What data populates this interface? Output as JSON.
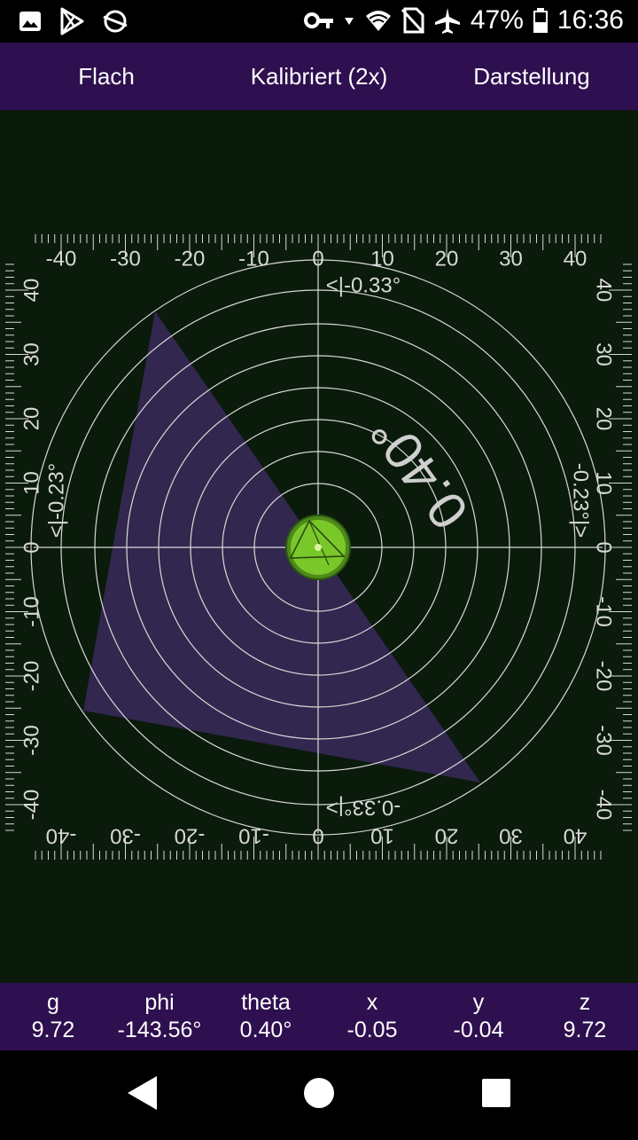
{
  "status": {
    "battery": "47%",
    "time": "16:36",
    "icons_left": [
      "gallery-icon",
      "play-store-icon",
      "sync-icon"
    ],
    "icons_right": [
      "vpn-key-icon",
      "wifi-icon",
      "no-sim-icon",
      "airplane-icon",
      "battery-icon"
    ]
  },
  "toolbar": {
    "flat": "Flach",
    "calibrated": "Kalibriert (2x)",
    "view": "Darstellung"
  },
  "level": {
    "top_readout": "<|-0.33°",
    "bottom_readout": "-0.33°|>",
    "left_readout": "<|-0.23°",
    "right_readout": "-0.23°|>",
    "angle": "0.40°",
    "ticks_top": [
      "-40",
      "-30",
      "-20",
      "-10",
      "0",
      "10",
      "20",
      "30",
      "40"
    ],
    "ticks_side": [
      "40",
      "30",
      "20",
      "10",
      "0",
      "-10",
      "-20",
      "-30",
      "-40"
    ],
    "bubble_color": "#7ac72a",
    "triangle_color": "#3a2a5a"
  },
  "info": {
    "g": {
      "label": "g",
      "value": "9.72"
    },
    "phi": {
      "label": "phi",
      "value": "-143.56°"
    },
    "theta": {
      "label": "theta",
      "value": "0.40°"
    },
    "x": {
      "label": "x",
      "value": "-0.05"
    },
    "y": {
      "label": "y",
      "value": "-0.04"
    },
    "z": {
      "label": "z",
      "value": "9.72"
    }
  }
}
